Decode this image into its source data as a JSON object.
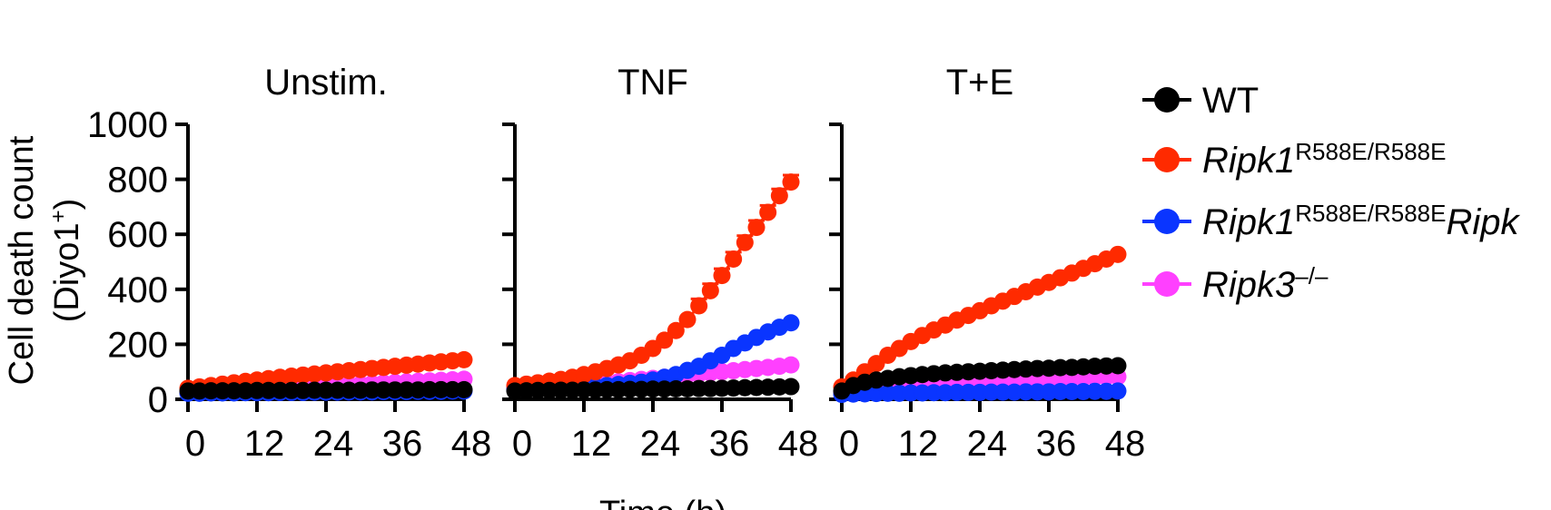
{
  "chart_data": {
    "type": "scatter",
    "ylabel": [
      "Cell death count",
      "(Diyo1",
      "+",
      ")"
    ],
    "xlabel": "Time (h)",
    "ylim": [
      0,
      1000
    ],
    "xlim": [
      0,
      48
    ],
    "yticks": [
      "0",
      "200",
      "400",
      "600",
      "800",
      "1000"
    ],
    "xticks": [
      "0",
      "12",
      "24",
      "36",
      "48"
    ],
    "x": [
      0,
      2,
      4,
      6,
      8,
      10,
      12,
      14,
      16,
      18,
      20,
      22,
      24,
      26,
      28,
      30,
      32,
      34,
      36,
      38,
      40,
      42,
      44,
      46,
      48
    ],
    "legend": [
      {
        "key": "wt",
        "color": "#000000",
        "label": "WT",
        "sup": "",
        "label2": ""
      },
      {
        "key": "r588e",
        "color": "#ff2a00",
        "label": "Ripk1",
        "sup": "R588E/R588E",
        "label2": ""
      },
      {
        "key": "r588e_ripk3",
        "color": "#0a35ff",
        "label": "Ripk1",
        "sup": "R588E/R588E",
        "label2": "Ripk"
      },
      {
        "key": "ripk3",
        "color": "#ff40ff",
        "label": "Ripk3",
        "sup": "–/–",
        "label2": ""
      }
    ],
    "panels": [
      {
        "title": "Unstim.",
        "series": [
          {
            "key": "ripk3",
            "values": [
              25,
              27,
              29,
              31,
              33,
              35,
              37,
              39,
              41,
              43,
              45,
              47,
              49,
              51,
              53,
              55,
              57,
              59,
              61,
              63,
              65,
              67,
              69,
              71,
              73
            ]
          },
          {
            "key": "r588e_ripk3",
            "values": [
              22,
              22,
              23,
              23,
              23,
              24,
              24,
              24,
              25,
              25,
              25,
              26,
              26,
              26,
              27,
              27,
              27,
              28,
              28,
              28,
              29,
              29,
              29,
              30,
              30
            ]
          },
          {
            "key": "r588e",
            "values": [
              40,
              45,
              50,
              55,
              60,
              65,
              70,
              75,
              80,
              84,
              88,
              92,
              96,
              100,
              104,
              108,
              112,
              116,
              120,
              124,
              128,
              132,
              136,
              140,
              144
            ]
          },
          {
            "key": "wt",
            "values": [
              30,
              30,
              31,
              31,
              31,
              31,
              32,
              32,
              32,
              32,
              32,
              33,
              33,
              33,
              33,
              33,
              34,
              34,
              34,
              34,
              34,
              35,
              35,
              35,
              35
            ]
          }
        ]
      },
      {
        "title": "TNF",
        "series": [
          {
            "key": "ripk3",
            "values": [
              40,
              42,
              44,
              46,
              48,
              50,
              53,
              56,
              60,
              64,
              68,
              72,
              76,
              80,
              84,
              88,
              92,
              96,
              100,
              104,
              108,
              112,
              116,
              120,
              125
            ]
          },
          {
            "key": "r588e_ripk3",
            "values": [
              35,
              36,
              37,
              38,
              40,
              42,
              44,
              47,
              50,
              54,
              58,
              62,
              70,
              80,
              90,
              105,
              120,
              140,
              160,
              185,
              205,
              225,
              245,
              262,
              278
            ]
          },
          {
            "key": "r588e",
            "values": [
              50,
              55,
              60,
              66,
              72,
              80,
              90,
              100,
              112,
              125,
              140,
              160,
              185,
              215,
              250,
              290,
              340,
              395,
              450,
              510,
              570,
              625,
              680,
              740,
              790
            ]
          },
          {
            "key": "wt",
            "values": [
              30,
              31,
              32,
              32,
              33,
              33,
              34,
              34,
              35,
              35,
              36,
              36,
              37,
              37,
              38,
              38,
              39,
              39,
              40,
              41,
              42,
              43,
              44,
              45,
              46
            ]
          }
        ],
        "errors": {
          "key": "r588e",
          "from_index": 16,
          "value": 25
        }
      },
      {
        "title": "T+E",
        "series": [
          {
            "key": "ripk3",
            "values": [
              25,
              28,
              32,
              36,
              40,
              44,
              47,
              50,
              53,
              56,
              58,
              60,
              62,
              64,
              66,
              68,
              70,
              72,
              73,
              75,
              77,
              78,
              80,
              81,
              82
            ]
          },
          {
            "key": "r588e_ripk3",
            "values": [
              18,
              19,
              20,
              21,
              22,
              22,
              23,
              23,
              24,
              24,
              25,
              25,
              25,
              26,
              26,
              26,
              27,
              27,
              27,
              28,
              28,
              28,
              29,
              29,
              30
            ]
          },
          {
            "key": "r588e",
            "values": [
              45,
              70,
              100,
              130,
              160,
              185,
              210,
              232,
              252,
              270,
              288,
              305,
              322,
              340,
              357,
              374,
              391,
              408,
              425,
              442,
              459,
              476,
              493,
              510,
              527
            ]
          },
          {
            "key": "wt",
            "values": [
              30,
              50,
              62,
              70,
              76,
              82,
              86,
              90,
              93,
              96,
              98,
              100,
              102,
              104,
              106,
              108,
              110,
              112,
              113,
              115,
              116,
              118,
              120,
              121,
              122
            ]
          }
        ]
      }
    ]
  }
}
